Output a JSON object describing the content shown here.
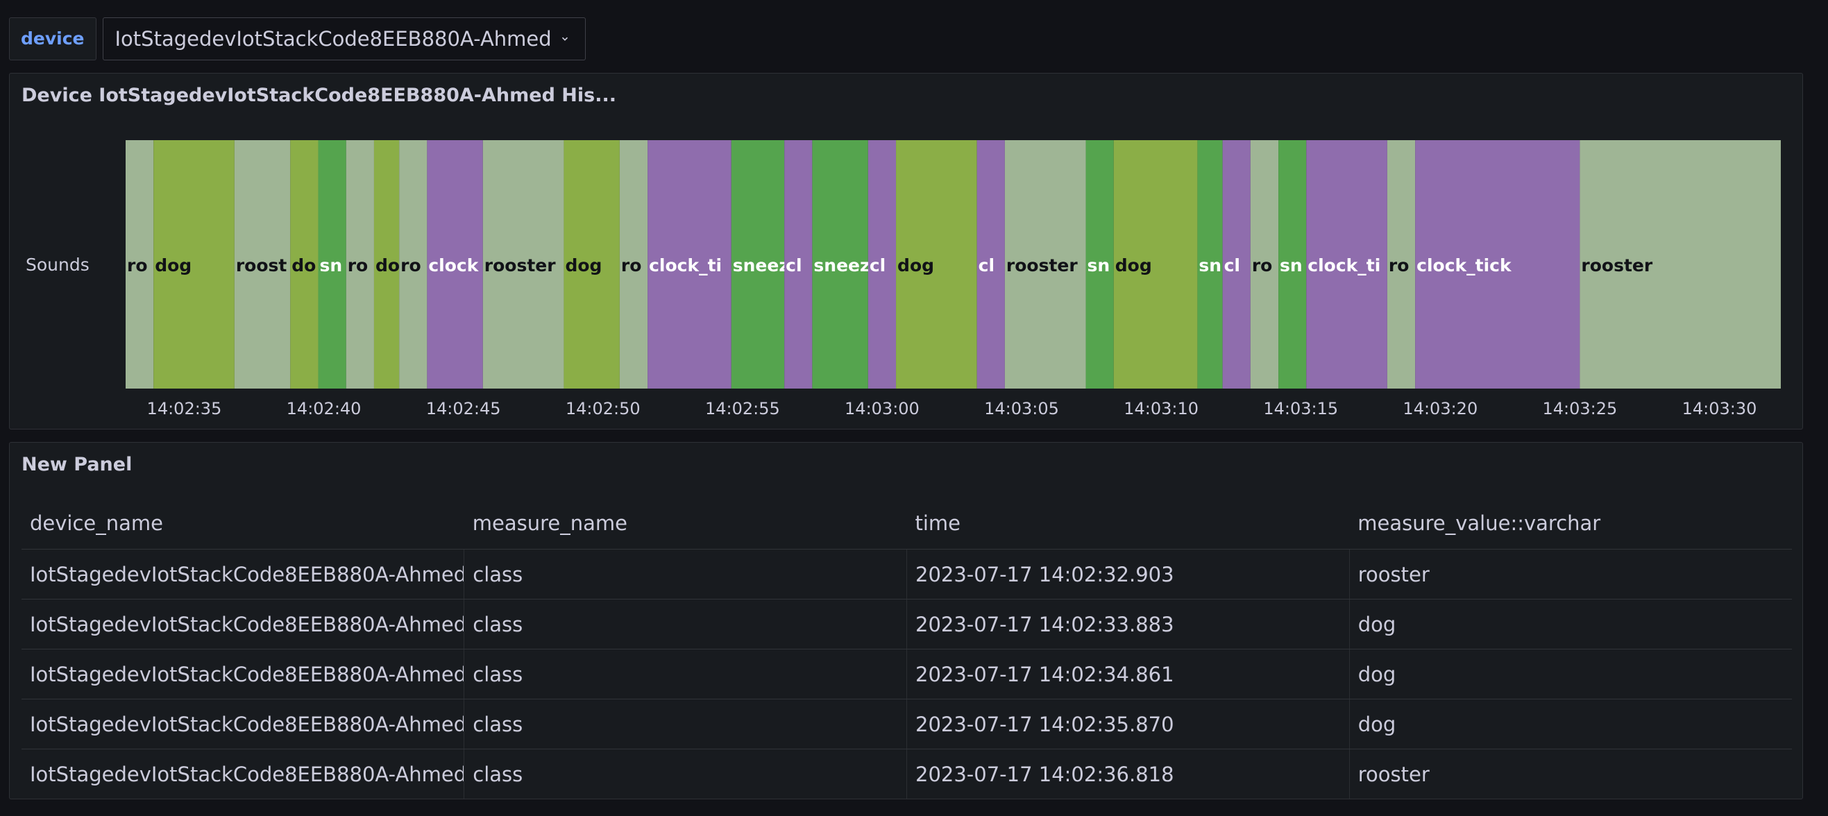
{
  "variable": {
    "label": "device",
    "value": "IotStagedevIotStackCode8EEB880A-Ahmed"
  },
  "history_panel": {
    "title": "Device IotStagedevIotStackCode8EEB880A-Ahmed His..."
  },
  "chart_data": {
    "type": "state-timeline",
    "row_label": "Sounds",
    "x_ticks": [
      "14:02:35",
      "14:02:40",
      "14:02:45",
      "14:02:50",
      "14:02:55",
      "14:03:00",
      "14:03:05",
      "14:03:10",
      "14:03:15",
      "14:03:20",
      "14:03:25",
      "14:03:30"
    ],
    "x_range": [
      "14:02:32.9",
      "14:03:32.2"
    ],
    "colors": {
      "rooster": "#9fb595",
      "dog": "#8bae47",
      "sneeze": "#55a44e",
      "clock_tick": "#8f6dad"
    },
    "segments": [
      {
        "state": "rooster",
        "start": "14:02:32.9",
        "label": "ro"
      },
      {
        "state": "dog",
        "start": "14:02:33.9",
        "label": "dog"
      },
      {
        "state": "rooster",
        "start": "14:02:36.8",
        "label": "roost"
      },
      {
        "state": "dog",
        "start": "14:02:38.8",
        "label": "do"
      },
      {
        "state": "sneeze",
        "start": "14:02:39.8",
        "label": "sn"
      },
      {
        "state": "rooster",
        "start": "14:02:40.8",
        "label": "ro"
      },
      {
        "state": "dog",
        "start": "14:02:41.8",
        "label": "do"
      },
      {
        "state": "rooster",
        "start": "14:02:42.7",
        "label": "ro"
      },
      {
        "state": "clock_tick",
        "start": "14:02:43.7",
        "label": "clock"
      },
      {
        "state": "rooster",
        "start": "14:02:45.7",
        "label": "rooster"
      },
      {
        "state": "dog",
        "start": "14:02:48.6",
        "label": "dog"
      },
      {
        "state": "rooster",
        "start": "14:02:50.6",
        "label": "ro"
      },
      {
        "state": "clock_tick",
        "start": "14:02:51.6",
        "label": "clock_ti"
      },
      {
        "state": "sneeze",
        "start": "14:02:54.6",
        "label": "sneez"
      },
      {
        "state": "clock_tick",
        "start": "14:02:56.5",
        "label": "cl"
      },
      {
        "state": "sneeze",
        "start": "14:02:57.5",
        "label": "sneez"
      },
      {
        "state": "clock_tick",
        "start": "14:02:59.5",
        "label": "cl"
      },
      {
        "state": "dog",
        "start": "14:03:00.5",
        "label": "dog"
      },
      {
        "state": "clock_tick",
        "start": "14:03:03.4",
        "label": "cl"
      },
      {
        "state": "rooster",
        "start": "14:03:04.4",
        "label": "rooster"
      },
      {
        "state": "sneeze",
        "start": "14:03:07.3",
        "label": "sn"
      },
      {
        "state": "dog",
        "start": "14:03:08.3",
        "label": "dog"
      },
      {
        "state": "sneeze",
        "start": "14:03:11.3",
        "label": "sn"
      },
      {
        "state": "clock_tick",
        "start": "14:03:12.2",
        "label": "cl"
      },
      {
        "state": "rooster",
        "start": "14:03:13.2",
        "label": "ro"
      },
      {
        "state": "sneeze",
        "start": "14:03:14.2",
        "label": "sn"
      },
      {
        "state": "clock_tick",
        "start": "14:03:15.2",
        "label": "clock_ti"
      },
      {
        "state": "rooster",
        "start": "14:03:18.1",
        "label": "ro"
      },
      {
        "state": "clock_tick",
        "start": "14:03:19.1",
        "label": "clock_tick"
      },
      {
        "state": "rooster",
        "start": "14:03:25.0",
        "label": "rooster"
      }
    ]
  },
  "table_panel": {
    "title": "New Panel",
    "columns": [
      "device_name",
      "measure_name",
      "time",
      "measure_value::varchar"
    ],
    "rows": [
      [
        "IotStagedevIotStackCode8EEB880A-Ahmed",
        "class",
        "2023-07-17 14:02:32.903",
        "rooster"
      ],
      [
        "IotStagedevIotStackCode8EEB880A-Ahmed",
        "class",
        "2023-07-17 14:02:33.883",
        "dog"
      ],
      [
        "IotStagedevIotStackCode8EEB880A-Ahmed",
        "class",
        "2023-07-17 14:02:34.861",
        "dog"
      ],
      [
        "IotStagedevIotStackCode8EEB880A-Ahmed",
        "class",
        "2023-07-17 14:02:35.870",
        "dog"
      ],
      [
        "IotStagedevIotStackCode8EEB880A-Ahmed",
        "class",
        "2023-07-17 14:02:36.818",
        "rooster"
      ]
    ]
  }
}
